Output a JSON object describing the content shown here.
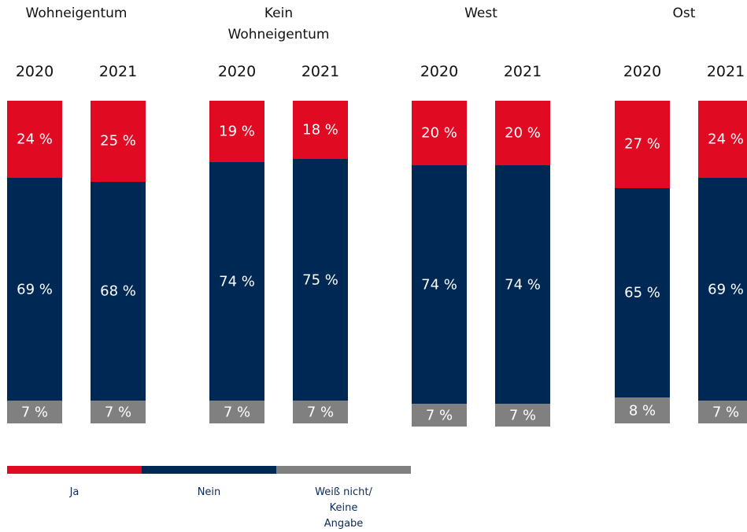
{
  "chart_data": {
    "type": "bar",
    "stacked": true,
    "percent_scale": true,
    "groups": [
      {
        "title": "Wohneigentum",
        "years": [
          "2020",
          "2021"
        ]
      },
      {
        "title": "Kein\nWohneigentum",
        "years": [
          "2020",
          "2021"
        ]
      },
      {
        "title": "West",
        "years": [
          "2020",
          "2021"
        ]
      },
      {
        "title": "Ost",
        "years": [
          "2020",
          "2021"
        ]
      }
    ],
    "series": [
      {
        "name": "Ja",
        "color": "#e10a23",
        "values": [
          24,
          25,
          19,
          18,
          20,
          20,
          27,
          24
        ]
      },
      {
        "name": "Nein",
        "color": "#002855",
        "values": [
          69,
          68,
          74,
          75,
          74,
          74,
          65,
          69
        ]
      },
      {
        "name": "Weiß nicht/\nKeine Angabe",
        "color": "#808080",
        "values": [
          7,
          7,
          7,
          7,
          7,
          7,
          8,
          7
        ]
      }
    ],
    "value_suffix": " %",
    "legend_position": "bottom-left"
  }
}
